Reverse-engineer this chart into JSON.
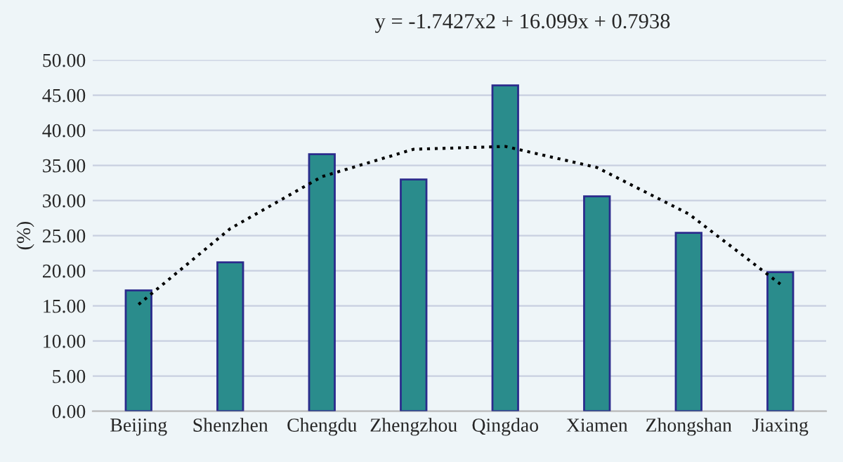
{
  "chart_data": {
    "type": "bar",
    "ylabel": "(%)",
    "categories": [
      "Beijing",
      "Shenzhen",
      "Chengdu",
      "Zhengzhou",
      "Qingdao",
      "Xiamen",
      "Zhongshan",
      "Jiaxing"
    ],
    "series": [
      {
        "color": "#2a8c8c",
        "values": [
          17.2,
          21.2,
          36.6,
          33.0,
          46.4,
          30.6,
          25.4,
          19.8
        ]
      },
      {
        "type": "line",
        "color": "#000000",
        "line_style": "dotted",
        "marker": "none",
        "x": [
          "Beijing",
          "Shenzhen",
          "Chengdu",
          "Zhengzhou",
          "Qingdao",
          "Xiamen",
          "Zhongshan",
          "Jiaxing"
        ],
        "values": [
          15.2,
          26.0,
          33.4,
          37.3,
          37.7,
          34.7,
          28.1,
          18.1
        ]
      }
    ],
    "ylim": [
      0,
      50
    ],
    "yticks": [
      {
        "value": 0,
        "label": "0.00"
      },
      {
        "value": 5,
        "label": "5.00"
      },
      {
        "value": 10,
        "label": "10.00"
      },
      {
        "value": 15,
        "label": "15.00"
      },
      {
        "value": 20,
        "label": "20.00"
      },
      {
        "value": 25,
        "label": "25.00"
      },
      {
        "value": 30,
        "label": "30.00"
      },
      {
        "value": 35,
        "label": "35.00"
      },
      {
        "value": 40,
        "label": "40.00"
      },
      {
        "value": 45,
        "label": "45.00"
      },
      {
        "value": 50,
        "label": "50.00"
      }
    ],
    "grid": "y",
    "annotations": [
      "y = -1.7427x2 + 16.099x + 0.7938"
    ]
  }
}
